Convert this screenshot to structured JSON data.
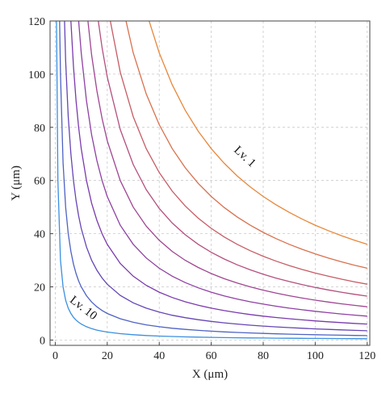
{
  "chart_data": {
    "type": "line",
    "title": "",
    "xlabel": "X (μm)",
    "ylabel": "Y (μm)",
    "xlim": [
      -2,
      121
    ],
    "ylim": [
      -2,
      120
    ],
    "xticks": [
      0,
      20,
      40,
      60,
      80,
      100,
      120
    ],
    "yticks": [
      0,
      20,
      40,
      60,
      80,
      100,
      120
    ],
    "grid": true,
    "legend": "none",
    "x": [
      0.5,
      1,
      2,
      3,
      4,
      5,
      6,
      7,
      8,
      9,
      10,
      12,
      14,
      16,
      18,
      20,
      25,
      30,
      35,
      40,
      45,
      50,
      55,
      60,
      65,
      70,
      75,
      80,
      85,
      90,
      95,
      100,
      105,
      110,
      115,
      120
    ],
    "series": [
      {
        "color": "#e8873a",
        "k": 4320
      },
      {
        "color": "#d9704d",
        "k": 3240
      },
      {
        "color": "#c75c65",
        "k": 2520
      },
      {
        "color": "#b44f7e",
        "k": 1980
      },
      {
        "color": "#a04592",
        "k": 1500
      },
      {
        "color": "#8e40a3",
        "k": 1080
      },
      {
        "color": "#7a3aad",
        "k": 720
      },
      {
        "color": "#6545b5",
        "k": 420
      },
      {
        "color": "#4e62c4",
        "k": 200
      },
      {
        "color": "#3a8fe0",
        "k": 60
      }
    ],
    "annotations": [
      {
        "text": "Lv. 1",
        "x": 72,
        "y": 68,
        "angle": 43
      },
      {
        "text": "Lv. 10",
        "x": 10,
        "y": 11,
        "angle": 38
      }
    ],
    "colors": {
      "grid": "#c8c8c8",
      "axis": "#444444"
    }
  }
}
